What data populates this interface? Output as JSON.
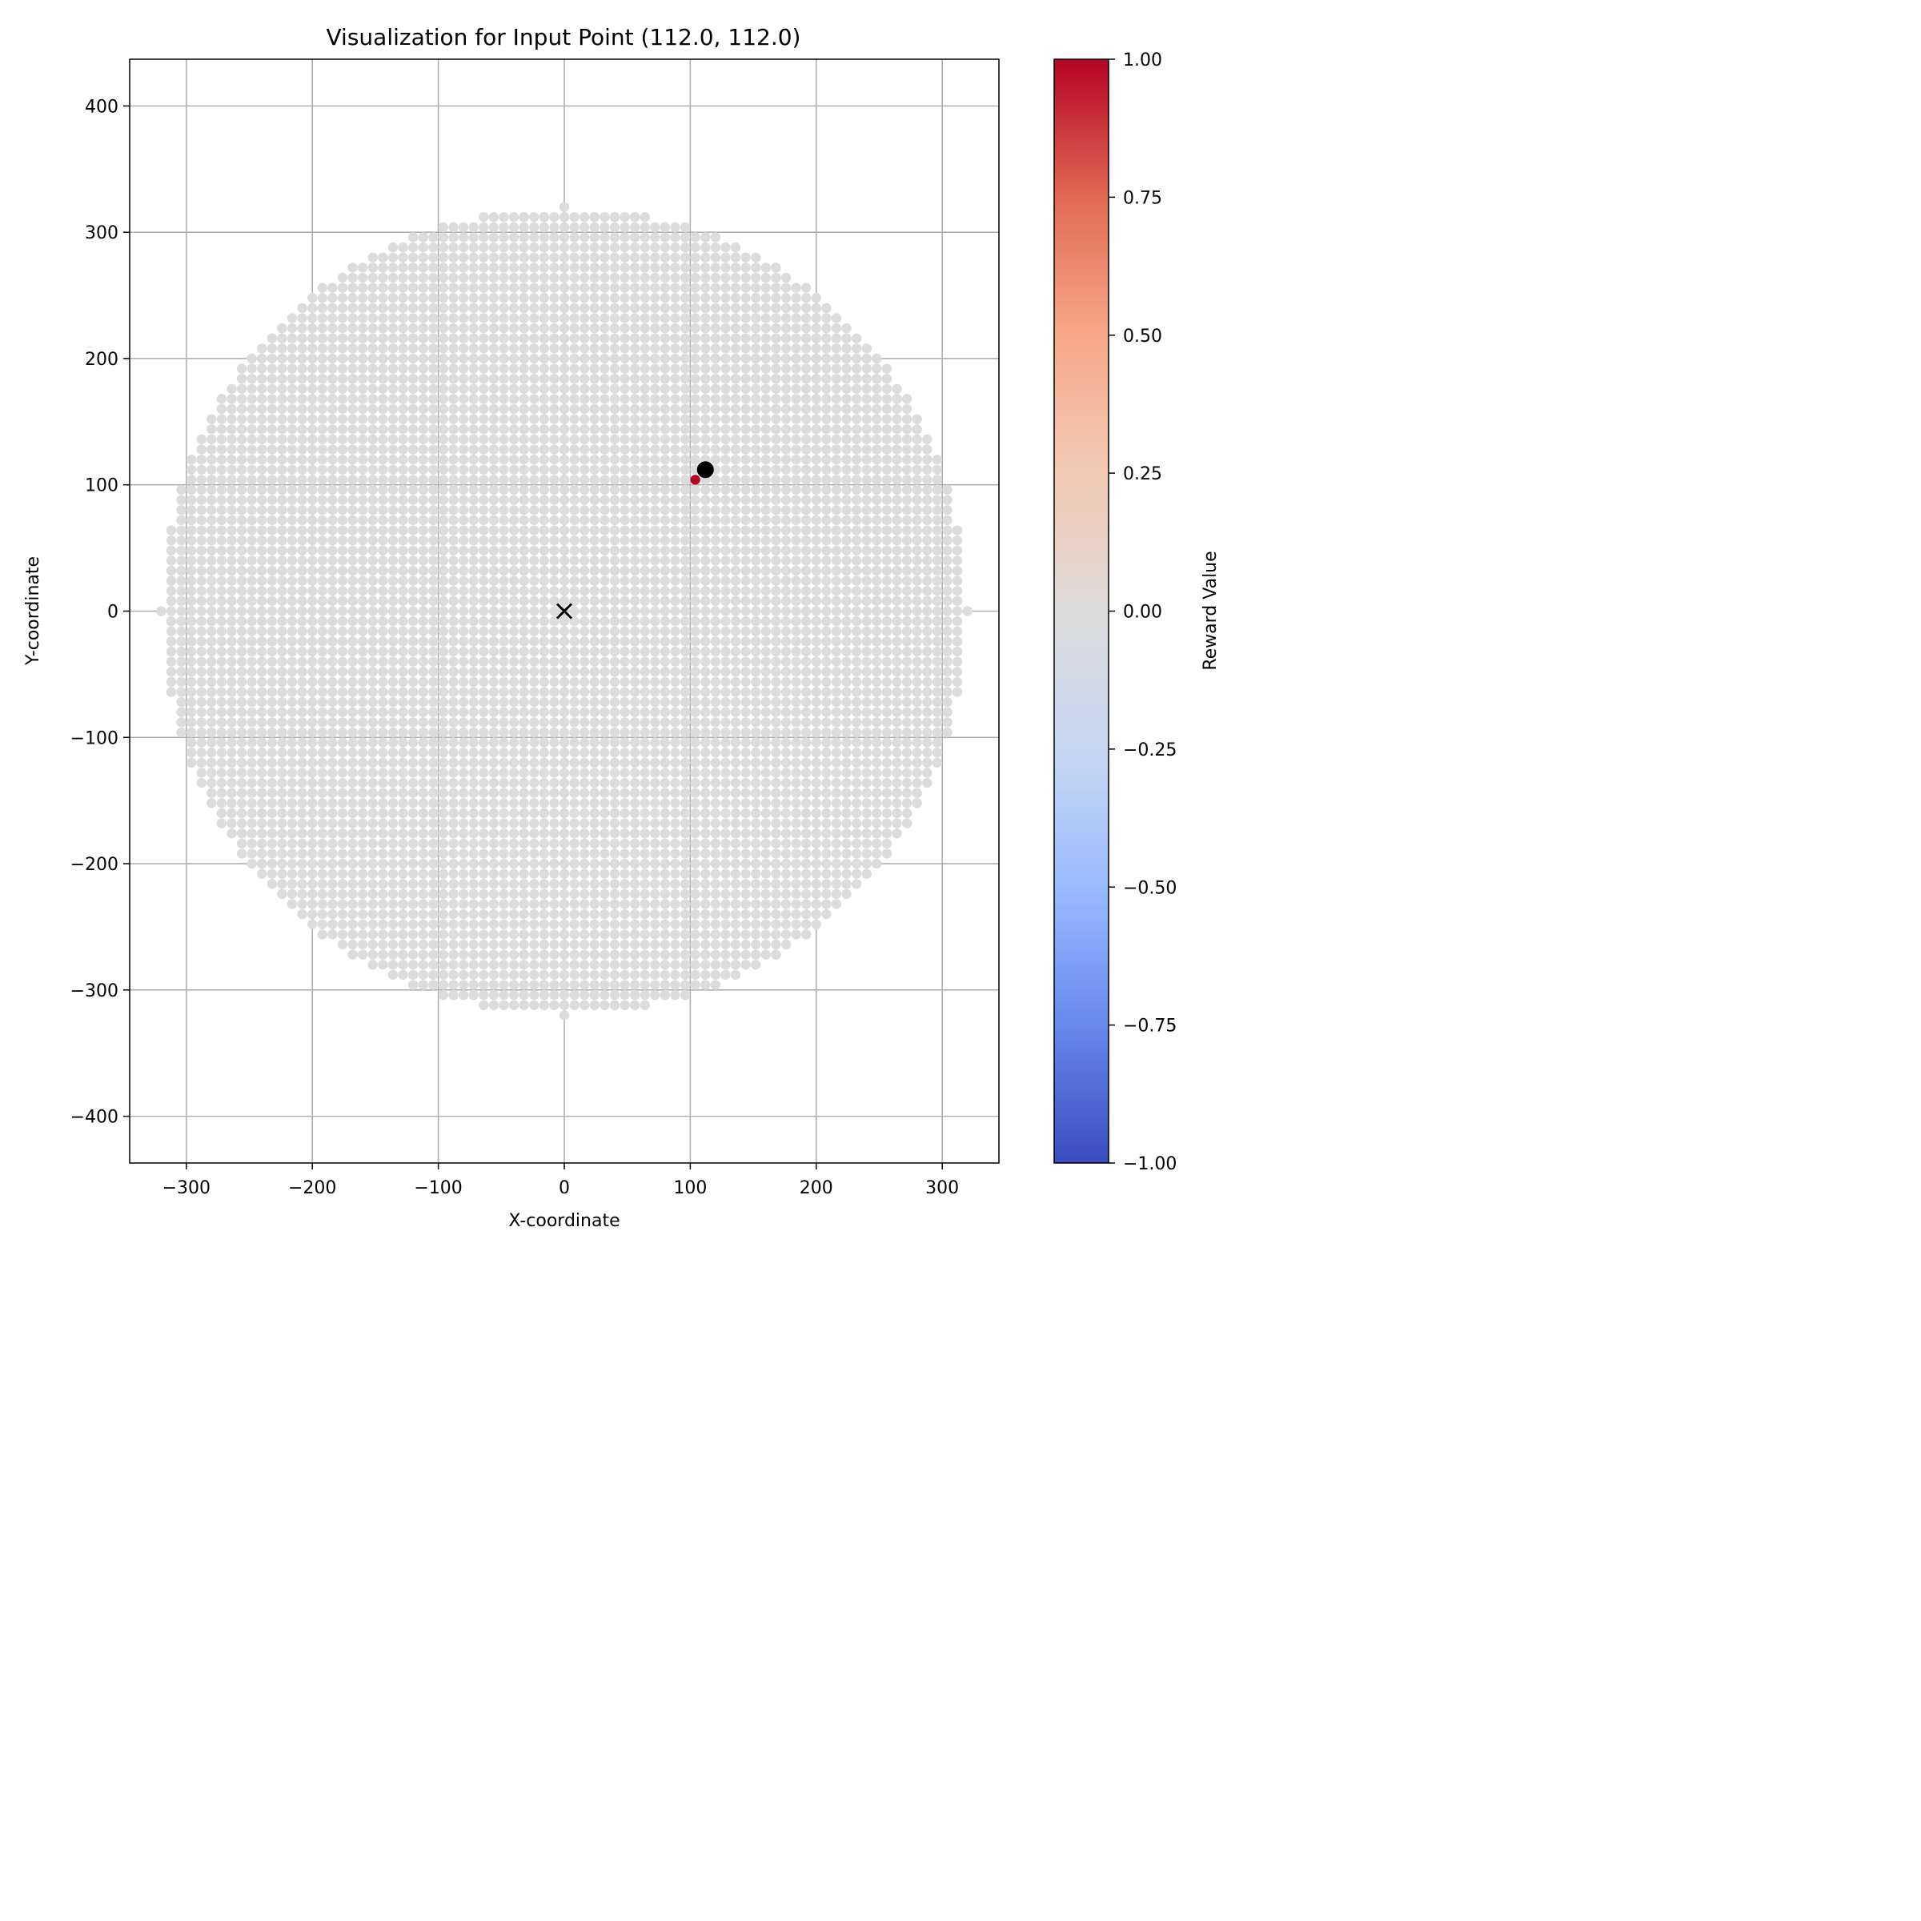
{
  "chart_data": {
    "type": "scatter",
    "title": "Visualization for Input Point (112.0, 112.0)",
    "xlabel": "X-coordinate",
    "ylabel": "Y-coordinate",
    "xlim": [
      -345,
      345
    ],
    "ylim": [
      -437,
      437
    ],
    "xticks": [
      -300,
      -200,
      -100,
      0,
      100,
      200,
      300
    ],
    "yticks": [
      -400,
      -300,
      -200,
      -100,
      0,
      100,
      200,
      300,
      400
    ],
    "xtick_labels": [
      "−300",
      "−200",
      "−100",
      "0",
      "100",
      "200",
      "300"
    ],
    "ytick_labels": [
      "−400",
      "−300",
      "−200",
      "−100",
      "0",
      "100",
      "200",
      "300",
      "400"
    ],
    "grid": true,
    "grid_points": {
      "description": "Grid of candidate points covering a disk, reward value 0.0 everywhere except one highlighted point",
      "radius": 320,
      "spacing": 8,
      "reward_value": 0.0,
      "color": "#dcdcdc"
    },
    "highlighted_point": {
      "x": 104,
      "y": 104,
      "reward": 1.0,
      "color": "#b40426"
    },
    "input_point": {
      "x": 112.0,
      "y": 112.0,
      "color": "#000000"
    },
    "origin_marker": {
      "x": 0,
      "y": 0,
      "marker": "x",
      "color": "#000000"
    },
    "colorbar": {
      "label": "Reward Value",
      "colormap": "coolwarm",
      "range": [
        -1.0,
        1.0
      ],
      "ticks": [
        1.0,
        0.75,
        0.5,
        0.25,
        0.0,
        -0.25,
        -0.5,
        -0.75,
        -1.0
      ],
      "tick_labels": [
        "1.00",
        "0.75",
        "0.50",
        "0.25",
        "0.00",
        "−0.25",
        "−0.50",
        "−0.75",
        "−1.00"
      ],
      "colors": [
        "#3b4cc0",
        "#6788ee",
        "#9abbff",
        "#c9d7f0",
        "#dddcdc",
        "#f2c9b4",
        "#f7a889",
        "#e26952",
        "#b40426"
      ]
    }
  }
}
